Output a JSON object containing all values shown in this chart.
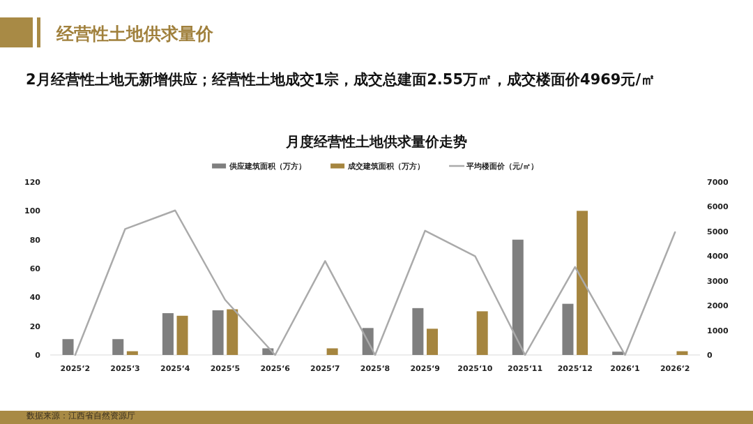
{
  "chart_data": {
    "type": "bar",
    "title": "月度经营性土地供求量价走势",
    "subtitle": "2月经营性土地无新增供应；经营性土地成交1宗，成交总建面2.55万㎡，成交楼面价4969元/㎡",
    "annotations": [
      "经营性土地供求量价",
      "数据来源：江西省自然资源厅"
    ],
    "categories": [
      "2025‘2",
      "2025‘3",
      "2025‘4",
      "2025‘5",
      "2025‘6",
      "2025‘7",
      "2025‘8",
      "2025‘9",
      "2025‘10",
      "2025‘11",
      "2025‘12",
      "2026‘1",
      "2026‘2"
    ],
    "series": [
      {
        "name": "供应建筑面积（万方）",
        "color": "#7f7f7f",
        "values": [
          11,
          11,
          29,
          31,
          4.6,
          null,
          18.7,
          32.5,
          null,
          80,
          35.5,
          2.3,
          null
        ]
      },
      {
        "name": "成交建筑面积（万方）",
        "color": "#a5853f",
        "values": [
          null,
          2.6,
          27.2,
          31.7,
          null,
          4.6,
          null,
          18.2,
          30.3,
          null,
          100,
          null,
          2.6
        ]
      },
      {
        "name": "平均楼面价（元/㎡）",
        "type": "line",
        "axis": "y2",
        "color": "#aaaaaa",
        "values": [
          0,
          5100,
          5850,
          2230,
          0,
          3800,
          0,
          5030,
          4000,
          0,
          3560,
          0,
          4970
        ]
      }
    ],
    "ylim": [
      0,
      120
    ],
    "yticks": [
      0,
      20,
      40,
      60,
      80,
      100,
      120
    ],
    "y2lim": [
      0,
      7000
    ],
    "y2ticks": [
      0,
      1000,
      2000,
      3000,
      4000,
      5000,
      6000,
      7000
    ],
    "legend": "top"
  }
}
